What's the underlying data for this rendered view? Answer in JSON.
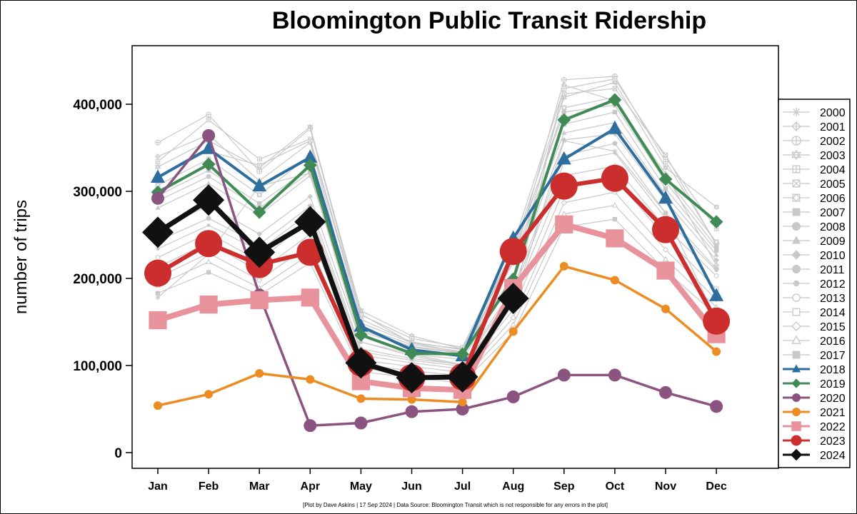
{
  "chart_data": {
    "type": "line",
    "title": "Bloomington Public Transit Ridership",
    "xlabel": "",
    "ylabel": "number of trips",
    "categories": [
      "Jan",
      "Feb",
      "Mar",
      "Apr",
      "May",
      "Jun",
      "Jul",
      "Aug",
      "Sep",
      "Oct",
      "Nov",
      "Dec"
    ],
    "yticks": [
      0,
      100000,
      200000,
      300000,
      400000
    ],
    "ytick_labels": [
      "0",
      "100,000",
      "200,000",
      "300,000",
      "400,000"
    ],
    "ylim": [
      -12000,
      470000
    ],
    "grid": false,
    "legend_position": "right",
    "footnote": "[Plot by Dave Askins | 17 Sep 2024 | Data Source: Bloomington Transit which is not responsible for any errors in the plot]",
    "series": [
      {
        "name": "2000",
        "color": "#c8c8c8",
        "marker": "asterisk",
        "values": [
          178000,
          228000,
          306000,
          321000,
          127000,
          111000,
          100000,
          170000,
          358000,
          346000,
          275000,
          153000
        ]
      },
      {
        "name": "2001",
        "color": "#c8c8c8",
        "marker": "diamond-cross",
        "values": [
          340000,
          365000,
          312000,
          356000,
          137000,
          113000,
          101000,
          172000,
          422000,
          404000,
          320000,
          215000
        ]
      },
      {
        "name": "2002",
        "color": "#c8c8c8",
        "marker": "circle-plus",
        "values": [
          356000,
          388000,
          323000,
          372000,
          159000,
          126000,
          115000,
          218000,
          428000,
          432000,
          334000,
          240000
        ]
      },
      {
        "name": "2003",
        "color": "#c8c8c8",
        "marker": "star-triangle",
        "values": [
          328000,
          358000,
          327000,
          374000,
          163000,
          134000,
          119000,
          233000,
          408000,
          425000,
          327000,
          282000
        ]
      },
      {
        "name": "2004",
        "color": "#c8c8c8",
        "marker": "square-plus",
        "values": [
          334000,
          382000,
          337000,
          360000,
          158000,
          131000,
          121000,
          239000,
          418000,
          429000,
          339000,
          257000
        ]
      },
      {
        "name": "2005",
        "color": "#c8c8c8",
        "marker": "square-x",
        "values": [
          317000,
          346000,
          330000,
          358000,
          153000,
          127000,
          118000,
          203000,
          412000,
          418000,
          342000,
          238000
        ]
      },
      {
        "name": "2006",
        "color": "#c8c8c8",
        "marker": "square-diamond",
        "values": [
          307000,
          337000,
          296000,
          341000,
          149000,
          126000,
          119000,
          226000,
          396000,
          408000,
          316000,
          242000
        ]
      },
      {
        "name": "2007",
        "color": "#c8c8c8",
        "marker": "square",
        "values": [
          295000,
          324000,
          286000,
          327000,
          141000,
          122000,
          115000,
          222000,
          377000,
          391000,
          303000,
          232000
        ]
      },
      {
        "name": "2008",
        "color": "#c8c8c8",
        "marker": "circle",
        "values": [
          289000,
          317000,
          281000,
          322000,
          144000,
          124000,
          116000,
          231000,
          391000,
          399000,
          311000,
          236000
        ]
      },
      {
        "name": "2009",
        "color": "#c8c8c8",
        "marker": "triangle",
        "values": [
          281000,
          309000,
          273000,
          318000,
          139000,
          121000,
          114000,
          219000,
          367000,
          379000,
          296000,
          227000
        ]
      },
      {
        "name": "2010",
        "color": "#c8c8c8",
        "marker": "diamond",
        "values": [
          255000,
          284000,
          251000,
          294000,
          127000,
          113000,
          107000,
          203000,
          359000,
          366000,
          289000,
          221000
        ]
      },
      {
        "name": "2011",
        "color": "#c8c8c8",
        "marker": "circle",
        "values": [
          243000,
          269000,
          239000,
          283000,
          119000,
          108000,
          101000,
          189000,
          341000,
          355000,
          275000,
          211000
        ]
      },
      {
        "name": "2012",
        "color": "#c8c8c8",
        "marker": "small-circle",
        "values": [
          234000,
          261000,
          232000,
          276000,
          116000,
          106000,
          99000,
          185000,
          333000,
          344000,
          269000,
          209000
        ]
      },
      {
        "name": "2013",
        "color": "#c8c8c8",
        "marker": "open-circle",
        "values": [
          224000,
          252000,
          220000,
          268000,
          112000,
          103000,
          96000,
          176000,
          318000,
          329000,
          258000,
          203000
        ]
      },
      {
        "name": "2014",
        "color": "#c8c8c8",
        "marker": "open-square",
        "values": [
          213000,
          241000,
          208000,
          251000,
          106000,
          99000,
          92000,
          164000,
          303000,
          315000,
          247000,
          188000
        ]
      },
      {
        "name": "2015",
        "color": "#c8c8c8",
        "marker": "open-diamond",
        "values": [
          201000,
          229000,
          198000,
          239000,
          101000,
          94000,
          88000,
          155000,
          287000,
          299000,
          233000,
          176000
        ]
      },
      {
        "name": "2016",
        "color": "#c8c8c8",
        "marker": "open-triangle",
        "values": [
          192000,
          219000,
          189000,
          228000,
          97000,
          90000,
          84000,
          147000,
          274000,
          284000,
          222000,
          167000
        ]
      },
      {
        "name": "2017",
        "color": "#c8c8c8",
        "marker": "square",
        "values": [
          183000,
          207000,
          181000,
          218000,
          93000,
          86000,
          80000,
          138000,
          259000,
          268000,
          209000,
          158000
        ]
      },
      {
        "name": "2018",
        "color": "#2e6e9e",
        "marker": "triangle",
        "values": [
          316000,
          349000,
          306000,
          339000,
          145000,
          118000,
          111000,
          246000,
          337000,
          372000,
          292000,
          180000
        ]
      },
      {
        "name": "2019",
        "color": "#3f8a55",
        "marker": "diamond",
        "values": [
          299000,
          331000,
          276000,
          330000,
          135000,
          114000,
          113000,
          199000,
          382000,
          405000,
          314000,
          265000
        ]
      },
      {
        "name": "2020",
        "color": "#8b5480",
        "marker": "circle",
        "values": [
          292000,
          364000,
          181000,
          31000,
          34000,
          47000,
          50000,
          64000,
          89000,
          89000,
          69000,
          53000
        ]
      },
      {
        "name": "2021",
        "color": "#ec8c22",
        "marker": "circle",
        "values": [
          54000,
          67000,
          91000,
          84000,
          62000,
          61000,
          58000,
          139000,
          214000,
          198000,
          165000,
          116000
        ]
      },
      {
        "name": "2022",
        "color": "#e8929c",
        "marker": "square",
        "values": [
          152000,
          170000,
          175000,
          178000,
          82000,
          74000,
          72000,
          189000,
          262000,
          246000,
          209000,
          136000
        ]
      },
      {
        "name": "2023",
        "color": "#cc2e2e",
        "marker": "circle",
        "values": [
          206000,
          240000,
          216000,
          230000,
          103000,
          86000,
          87000,
          231000,
          306000,
          315000,
          256000,
          151000
        ]
      },
      {
        "name": "2024",
        "color": "#111111",
        "marker": "diamond",
        "values": [
          253000,
          290000,
          230000,
          265000,
          103000,
          86000,
          87000,
          177000,
          null,
          null,
          null,
          null
        ]
      }
    ]
  }
}
